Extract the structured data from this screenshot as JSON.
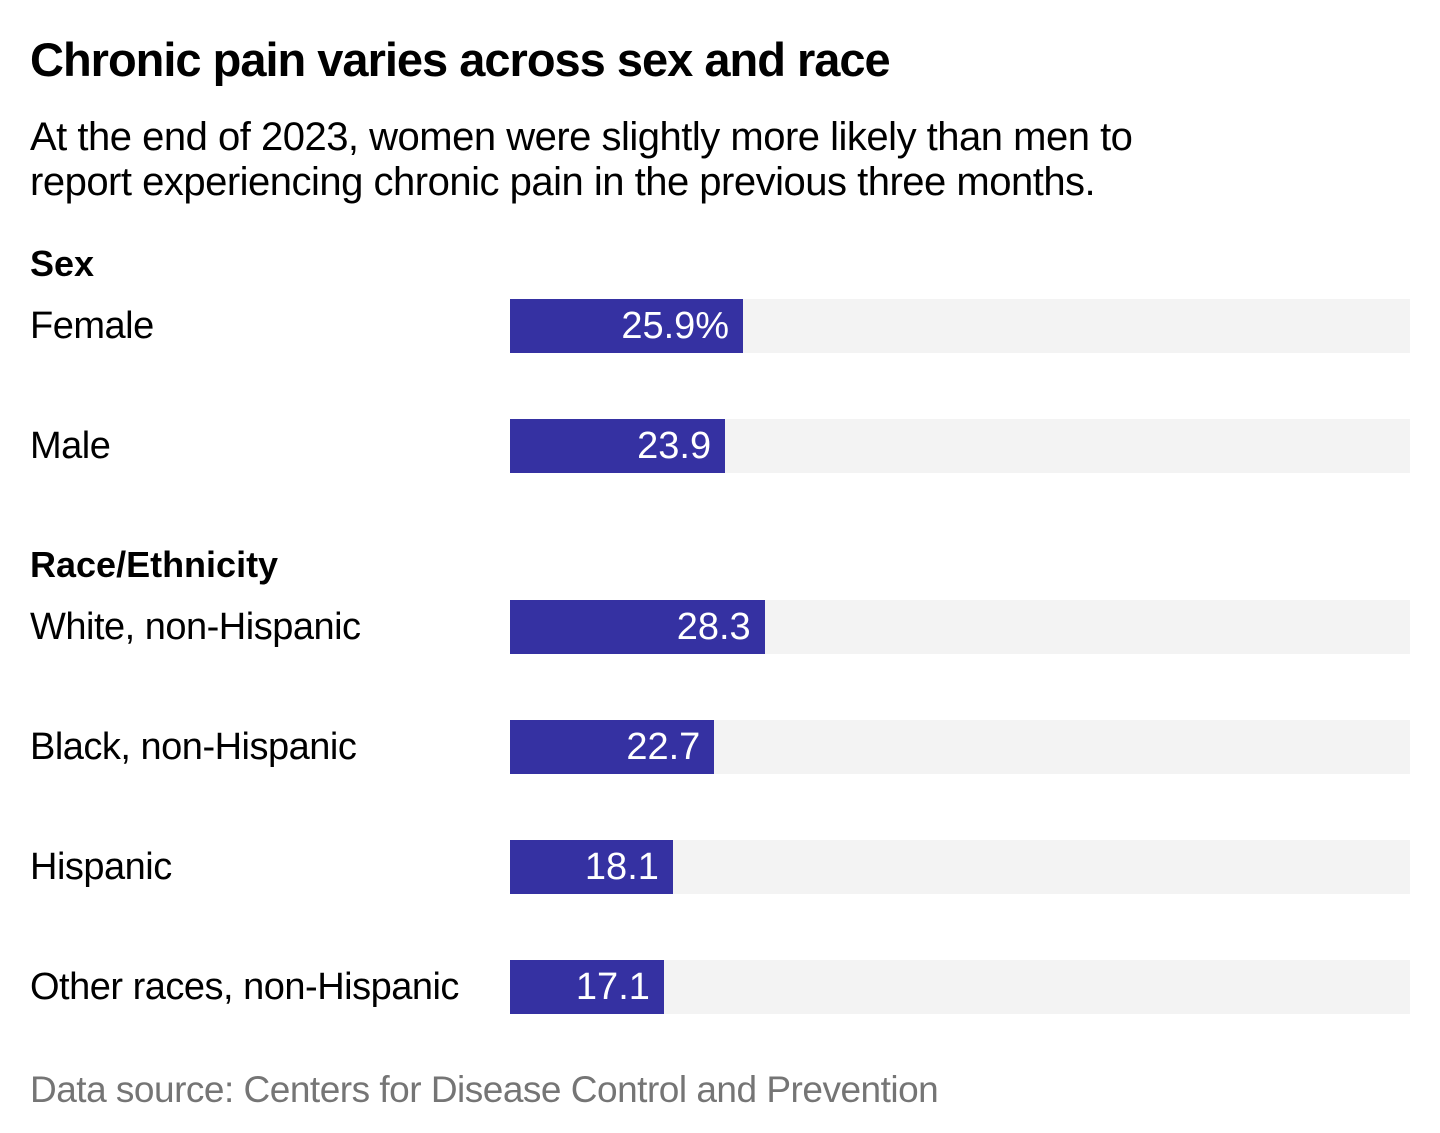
{
  "header": {
    "title": "Chronic pain varies across sex and race",
    "subtitle_lines": [
      "At the end of 2023, women were slightly more likely than men to",
      "report experiencing chronic pain in the previous three months."
    ]
  },
  "chart_data": {
    "type": "bar",
    "orientation": "horizontal",
    "xlim": [
      0,
      100
    ],
    "grid": false,
    "legend": false,
    "bar_color": "#3531a2",
    "track_color": "#f3f3f3",
    "value_label_color": "#ffffff",
    "groups": [
      {
        "label": "Sex",
        "rows": [
          {
            "label": "Female",
            "value": 25.9,
            "display": "25.9%"
          },
          {
            "label": "Male",
            "value": 23.9,
            "display": "23.9"
          }
        ]
      },
      {
        "label": "Race/Ethnicity",
        "rows": [
          {
            "label": "White, non-Hispanic",
            "value": 28.3,
            "display": "28.3"
          },
          {
            "label": "Black, non-Hispanic",
            "value": 22.7,
            "display": "22.7"
          },
          {
            "label": "Hispanic",
            "value": 18.1,
            "display": "18.1"
          },
          {
            "label": "Other races, non-Hispanic",
            "value": 17.1,
            "display": "17.1"
          }
        ]
      }
    ]
  },
  "footer": {
    "source": "Data source: Centers for Disease Control and Prevention"
  }
}
